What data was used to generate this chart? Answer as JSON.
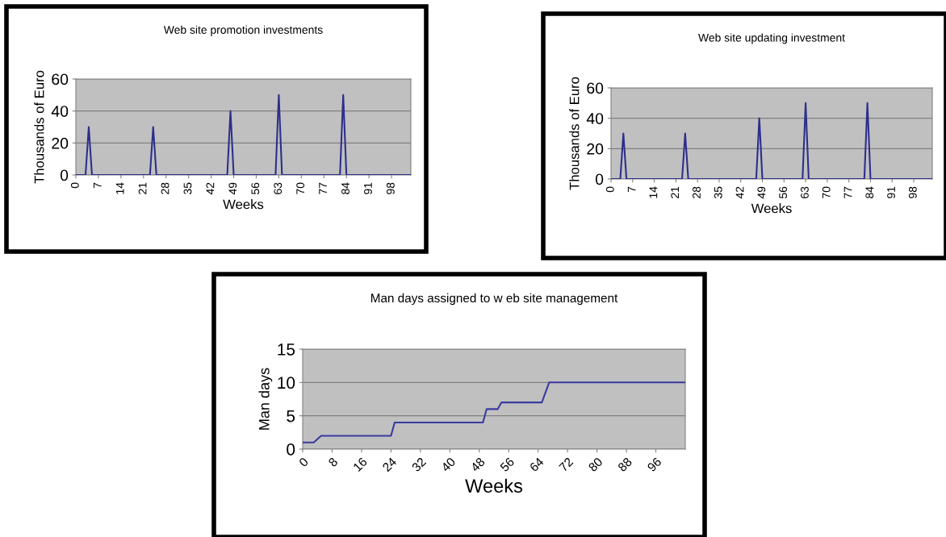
{
  "chart_data": [
    {
      "type": "line",
      "title": "Web site promotion investments",
      "xlabel": "Weeks",
      "ylabel": "Thousands of Euro",
      "x": [
        0,
        3,
        4,
        5,
        23,
        24,
        25,
        47,
        48,
        49,
        62,
        63,
        64,
        82,
        83,
        84,
        104
      ],
      "series": [
        {
          "color": "#2e2e8c",
          "values": [
            0,
            0,
            30,
            0,
            0,
            30,
            0,
            0,
            40,
            0,
            0,
            50,
            0,
            0,
            50,
            0,
            0
          ]
        }
      ],
      "xlim": [
        0,
        104
      ],
      "xticks": [
        0,
        7,
        14,
        21,
        28,
        35,
        42,
        49,
        56,
        63,
        70,
        77,
        84,
        91,
        98
      ],
      "ylim": [
        0,
        60
      ],
      "yticks": [
        0,
        20,
        40,
        60
      ],
      "grid": "y",
      "marker": "none"
    },
    {
      "type": "line",
      "title": "Web site updating investment",
      "xlabel": "Weeks",
      "ylabel": "Thousands of Euro",
      "x": [
        0,
        3,
        4,
        5,
        23,
        24,
        25,
        47,
        48,
        49,
        62,
        63,
        64,
        82,
        83,
        84,
        104
      ],
      "series": [
        {
          "color": "#2e2e8c",
          "values": [
            0,
            0,
            30,
            0,
            0,
            30,
            0,
            0,
            40,
            0,
            0,
            50,
            0,
            0,
            50,
            0,
            0
          ]
        }
      ],
      "xlim": [
        0,
        104
      ],
      "xticks": [
        0,
        7,
        14,
        21,
        28,
        35,
        42,
        49,
        56,
        63,
        70,
        77,
        84,
        91,
        98
      ],
      "ylim": [
        0,
        60
      ],
      "yticks": [
        0,
        20,
        40,
        60
      ],
      "grid": "y",
      "marker": "none"
    },
    {
      "type": "line",
      "title": "Man days assigned to w eb site management",
      "xlabel": "Weeks",
      "ylabel": "Man days",
      "x": [
        0,
        3,
        5,
        24,
        25,
        49,
        50,
        53,
        54,
        65,
        67,
        104
      ],
      "series": [
        {
          "color": "#3a3aa0",
          "values": [
            1,
            1,
            2,
            2,
            4,
            4,
            6,
            6,
            7,
            7,
            10,
            10
          ]
        }
      ],
      "xlim": [
        0,
        104
      ],
      "xticks": [
        0,
        8,
        16,
        24,
        32,
        40,
        48,
        56,
        64,
        72,
        80,
        88,
        96
      ],
      "ylim": [
        0,
        15
      ],
      "yticks": [
        0,
        5,
        10,
        15
      ],
      "grid": "y",
      "marker": "none"
    }
  ]
}
